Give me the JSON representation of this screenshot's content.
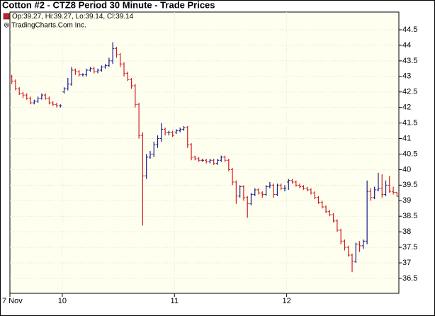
{
  "chart_data": {
    "type": "ohlc",
    "title": "Cotton #2 - CTZ8 Period 30 Minute - Trade Prices",
    "legend_text": "Op:39.27, Hi:39.27, Lo:39.14, Cl:39.14",
    "source": "⊚ TradingCharts.Com Inc.",
    "up_color": "#1a1a8c",
    "down_color": "#cc1f1f",
    "legend_color": "#cc1f1f",
    "grid": true,
    "ylim": [
      36.02,
      45.07
    ],
    "yticks": [
      36.5,
      37,
      37.5,
      38,
      38.5,
      39,
      39.5,
      40,
      40.5,
      41,
      41.5,
      42,
      42.5,
      43,
      43.5,
      44,
      44.5
    ],
    "categories": [
      "7 Nov",
      null,
      null,
      null,
      null,
      null,
      null,
      null,
      null,
      null,
      null,
      null,
      null,
      null,
      "10",
      null,
      null,
      null,
      null,
      null,
      null,
      null,
      null,
      null,
      null,
      null,
      null,
      null,
      null,
      null,
      null,
      null,
      null,
      null,
      null,
      null,
      null,
      null,
      null,
      null,
      null,
      null,
      null,
      null,
      "11",
      null,
      null,
      null,
      null,
      null,
      null,
      null,
      null,
      null,
      null,
      null,
      null,
      null,
      null,
      null,
      null,
      null,
      null,
      null,
      null,
      null,
      null,
      null,
      null,
      null,
      null,
      null,
      null,
      null,
      "12",
      null,
      null,
      null,
      null,
      null,
      null,
      null,
      null,
      null,
      null,
      null,
      null,
      null,
      null,
      null,
      null,
      null,
      null,
      null,
      null,
      null,
      null,
      null,
      null,
      null,
      null,
      null,
      null,
      null
    ],
    "open": [
      43.0,
      42.85,
      42.6,
      42.45,
      42.4,
      42.3,
      42.15,
      42.2,
      42.3,
      42.4,
      42.3,
      42.15,
      42.1,
      42.05,
      42.5,
      42.6,
      42.75,
      43.2,
      43.15,
      43.05,
      43.05,
      43.2,
      43.25,
      43.15,
      43.2,
      43.3,
      43.35,
      43.5,
      43.9,
      43.7,
      43.4,
      43.1,
      42.9,
      42.7,
      42.1,
      41.1,
      39.8,
      40.4,
      40.5,
      40.8,
      41.0,
      41.3,
      41.2,
      41.2,
      41.2,
      41.25,
      41.3,
      41.35,
      40.8,
      40.4,
      40.35,
      40.3,
      40.3,
      40.25,
      40.3,
      40.2,
      40.3,
      40.4,
      40.3,
      40.0,
      39.6,
      39.15,
      39.45,
      39.1,
      38.9,
      39.2,
      39.35,
      39.25,
      39.2,
      39.45,
      39.5,
      39.2,
      39.5,
      39.4,
      39.6,
      39.65,
      39.6,
      39.5,
      39.45,
      39.4,
      39.35,
      39.25,
      39.1,
      38.95,
      38.8,
      38.65,
      38.55,
      38.35,
      38.05,
      37.7,
      37.5,
      37.25,
      37.05,
      37.6,
      37.55,
      37.7,
      39.3,
      39.1,
      39.35,
      39.4,
      39.2,
      39.5,
      39.3,
      39.27
    ],
    "high": [
      43.05,
      42.9,
      42.65,
      42.5,
      42.45,
      42.35,
      42.25,
      42.35,
      42.45,
      42.45,
      42.35,
      42.2,
      42.15,
      42.1,
      42.65,
      42.95,
      43.3,
      43.25,
      43.2,
      43.1,
      43.25,
      43.3,
      43.3,
      43.25,
      43.35,
      43.4,
      43.6,
      44.1,
      43.95,
      43.75,
      43.45,
      43.15,
      42.95,
      42.75,
      42.15,
      41.2,
      40.5,
      40.6,
      40.9,
      41.1,
      41.5,
      41.35,
      41.25,
      41.25,
      41.3,
      41.35,
      41.4,
      41.4,
      40.85,
      40.45,
      40.4,
      40.35,
      40.35,
      40.35,
      40.35,
      40.35,
      40.45,
      40.45,
      40.35,
      40.05,
      39.65,
      39.5,
      39.5,
      39.15,
      39.25,
      39.4,
      39.4,
      39.3,
      39.5,
      39.6,
      39.55,
      39.55,
      39.55,
      39.5,
      39.7,
      39.7,
      39.65,
      39.55,
      39.5,
      39.45,
      39.4,
      39.3,
      39.15,
      39.0,
      38.85,
      38.7,
      38.6,
      38.4,
      38.1,
      37.75,
      37.55,
      37.3,
      37.65,
      37.7,
      37.75,
      39.65,
      39.4,
      39.45,
      39.9,
      39.85,
      39.65,
      39.8,
      39.45,
      39.27
    ],
    "low": [
      42.75,
      42.55,
      42.4,
      42.3,
      42.25,
      42.1,
      42.1,
      42.15,
      42.25,
      42.25,
      42.1,
      42.05,
      42.0,
      42.0,
      42.45,
      42.55,
      42.7,
      43.05,
      43.0,
      43.0,
      43.0,
      43.15,
      43.1,
      43.1,
      43.15,
      43.25,
      43.3,
      43.4,
      43.6,
      43.3,
      43.0,
      42.85,
      42.6,
      42.0,
      41.0,
      38.2,
      39.7,
      40.35,
      40.4,
      40.7,
      40.9,
      41.1,
      41.1,
      41.05,
      41.15,
      41.2,
      41.25,
      40.7,
      40.3,
      40.3,
      40.25,
      40.25,
      40.2,
      40.2,
      40.15,
      40.15,
      40.25,
      40.25,
      39.95,
      39.5,
      38.9,
      39.1,
      39.0,
      38.45,
      38.85,
      39.15,
      39.2,
      39.1,
      39.15,
      39.4,
      39.1,
      39.15,
      39.35,
      39.3,
      39.35,
      39.55,
      39.45,
      39.4,
      39.35,
      39.3,
      39.2,
      39.05,
      38.9,
      38.75,
      38.6,
      38.5,
      38.3,
      38.0,
      37.6,
      37.4,
      37.2,
      36.7,
      37.0,
      37.35,
      37.45,
      37.6,
      39.0,
      39.05,
      39.3,
      39.1,
      39.15,
      39.25,
      39.2,
      39.14
    ],
    "close": [
      42.85,
      42.6,
      42.45,
      42.4,
      42.3,
      42.15,
      42.2,
      42.3,
      42.4,
      42.3,
      42.15,
      42.1,
      42.05,
      42.05,
      42.6,
      42.75,
      43.2,
      43.15,
      43.05,
      43.05,
      43.2,
      43.25,
      43.15,
      43.2,
      43.3,
      43.35,
      43.5,
      43.9,
      43.7,
      43.4,
      43.1,
      42.9,
      42.7,
      42.1,
      41.1,
      39.8,
      40.4,
      40.5,
      40.8,
      41.0,
      41.3,
      41.2,
      41.2,
      41.1,
      41.25,
      41.3,
      41.35,
      40.8,
      40.4,
      40.35,
      40.3,
      40.3,
      40.25,
      40.3,
      40.2,
      40.3,
      40.4,
      40.3,
      40.0,
      39.6,
      39.15,
      39.45,
      39.1,
      38.9,
      39.2,
      39.35,
      39.25,
      39.2,
      39.45,
      39.5,
      39.2,
      39.5,
      39.4,
      39.4,
      39.65,
      39.6,
      39.5,
      39.45,
      39.4,
      39.35,
      39.25,
      39.1,
      38.95,
      38.8,
      38.65,
      38.55,
      38.35,
      38.05,
      37.7,
      37.5,
      37.25,
      37.05,
      37.6,
      37.55,
      37.7,
      39.3,
      39.1,
      39.35,
      39.4,
      39.2,
      39.5,
      39.3,
      39.27,
      39.14
    ]
  }
}
